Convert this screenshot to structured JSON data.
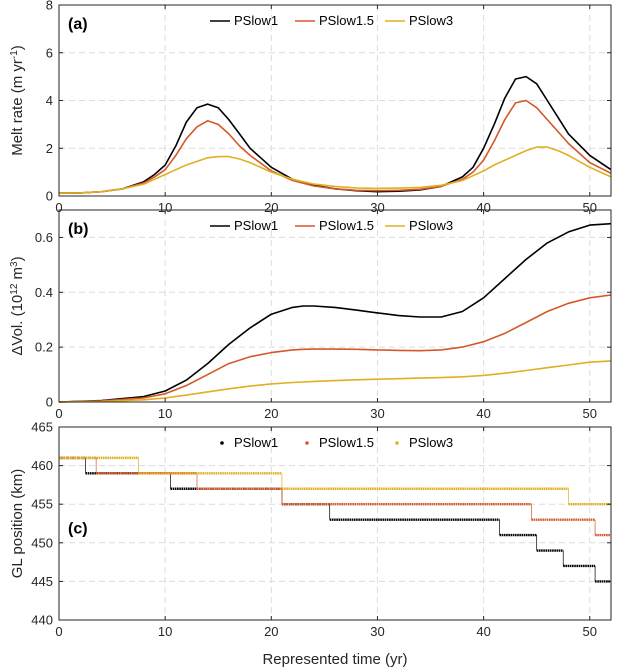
{
  "figure": {
    "xlabel": "Represented time (yr)",
    "xlim": [
      0,
      52
    ],
    "xticks": [
      0,
      10,
      20,
      30,
      40,
      50
    ]
  },
  "series_styles": [
    {
      "name": "PSlow1",
      "color": "#000000"
    },
    {
      "name": "PSlow1.5",
      "color": "#d4592a"
    },
    {
      "name": "PSlow3",
      "color": "#e0b020"
    }
  ],
  "chart_data": [
    {
      "type": "line",
      "panel": "(a)",
      "ylabel": "Melt rate (m yr",
      "ylabel_sup": "-1",
      "ylabel_tail": ")",
      "ylim": [
        0,
        8
      ],
      "yticks": [
        0,
        2,
        4,
        6,
        8
      ],
      "grid": true,
      "legend": "top",
      "x": [
        0,
        2,
        4,
        6,
        8,
        9,
        10,
        11,
        12,
        13,
        14,
        15,
        16,
        17,
        18,
        20,
        22,
        24,
        26,
        28,
        30,
        32,
        34,
        36,
        38,
        39,
        40,
        41,
        42,
        43,
        44,
        45,
        46,
        47,
        48,
        50,
        52
      ],
      "series": [
        {
          "name": "PSlow1",
          "values": [
            0.12,
            0.13,
            0.18,
            0.3,
            0.6,
            0.9,
            1.3,
            2.1,
            3.1,
            3.7,
            3.85,
            3.7,
            3.2,
            2.6,
            2.0,
            1.2,
            0.7,
            0.45,
            0.3,
            0.22,
            0.18,
            0.2,
            0.25,
            0.4,
            0.8,
            1.2,
            2.0,
            3.0,
            4.1,
            4.9,
            5.0,
            4.7,
            4.0,
            3.3,
            2.6,
            1.7,
            1.1
          ]
        },
        {
          "name": "PSlow1.5",
          "values": [
            0.12,
            0.13,
            0.18,
            0.3,
            0.55,
            0.8,
            1.1,
            1.7,
            2.4,
            2.9,
            3.15,
            3.0,
            2.6,
            2.1,
            1.7,
            1.05,
            0.65,
            0.42,
            0.3,
            0.24,
            0.22,
            0.24,
            0.28,
            0.4,
            0.7,
            1.0,
            1.5,
            2.3,
            3.2,
            3.9,
            4.0,
            3.7,
            3.2,
            2.7,
            2.2,
            1.4,
            0.95
          ]
        },
        {
          "name": "PSlow3",
          "values": [
            0.12,
            0.13,
            0.18,
            0.3,
            0.5,
            0.7,
            0.9,
            1.1,
            1.3,
            1.45,
            1.6,
            1.65,
            1.65,
            1.55,
            1.4,
            1.0,
            0.7,
            0.5,
            0.4,
            0.34,
            0.32,
            0.33,
            0.36,
            0.45,
            0.65,
            0.85,
            1.05,
            1.3,
            1.5,
            1.7,
            1.9,
            2.05,
            2.05,
            1.9,
            1.7,
            1.2,
            0.8
          ]
        }
      ]
    },
    {
      "type": "line",
      "panel": "(b)",
      "ylabel": "ΔVol. (10",
      "ylabel_sup": "12",
      "ylabel_tail": " m",
      "ylabel_sup2": "3",
      "ylabel_end": ")",
      "ylim": [
        0,
        0.7
      ],
      "yticks": [
        0,
        0.2,
        0.4,
        0.6
      ],
      "grid": true,
      "legend": "top",
      "x": [
        0,
        4,
        8,
        10,
        12,
        14,
        16,
        18,
        20,
        22,
        23,
        24,
        26,
        28,
        30,
        32,
        34,
        36,
        38,
        40,
        42,
        44,
        46,
        48,
        50,
        52
      ],
      "series": [
        {
          "name": "PSlow1",
          "values": [
            0.0,
            0.005,
            0.02,
            0.04,
            0.08,
            0.14,
            0.21,
            0.27,
            0.32,
            0.345,
            0.35,
            0.35,
            0.345,
            0.335,
            0.325,
            0.315,
            0.31,
            0.31,
            0.33,
            0.38,
            0.45,
            0.52,
            0.58,
            0.62,
            0.645,
            0.65
          ]
        },
        {
          "name": "PSlow1.5",
          "values": [
            0.0,
            0.004,
            0.015,
            0.03,
            0.06,
            0.1,
            0.14,
            0.165,
            0.18,
            0.19,
            0.192,
            0.193,
            0.193,
            0.192,
            0.19,
            0.188,
            0.187,
            0.19,
            0.2,
            0.22,
            0.25,
            0.29,
            0.33,
            0.36,
            0.38,
            0.39
          ]
        },
        {
          "name": "PSlow3",
          "values": [
            0.0,
            0.002,
            0.008,
            0.015,
            0.025,
            0.037,
            0.048,
            0.058,
            0.066,
            0.071,
            0.073,
            0.075,
            0.078,
            0.081,
            0.083,
            0.085,
            0.087,
            0.089,
            0.092,
            0.097,
            0.105,
            0.115,
            0.125,
            0.135,
            0.145,
            0.15
          ]
        }
      ]
    },
    {
      "type": "scatter",
      "panel": "(c)",
      "ylabel": "GL position (km)",
      "ylim": [
        440,
        465
      ],
      "yticks": [
        440,
        445,
        450,
        455,
        460,
        465
      ],
      "grid": true,
      "legend": "top",
      "series": [
        {
          "name": "PSlow1",
          "steps": [
            [
              0,
              2.5,
              461
            ],
            [
              2.5,
              10.5,
              459
            ],
            [
              10.5,
              21,
              457
            ],
            [
              21,
              25.5,
              455
            ],
            [
              25.5,
              41.5,
              453
            ],
            [
              41.5,
              45,
              451
            ],
            [
              45,
              47.5,
              449
            ],
            [
              47.5,
              50.5,
              447
            ],
            [
              50.5,
              52,
              445
            ]
          ]
        },
        {
          "name": "PSlow1.5",
          "steps": [
            [
              0,
              3.5,
              461
            ],
            [
              3.5,
              13,
              459
            ],
            [
              13,
              21,
              457
            ],
            [
              21,
              44.5,
              455
            ],
            [
              44.5,
              50.5,
              453
            ],
            [
              50.5,
              52,
              451
            ]
          ]
        },
        {
          "name": "PSlow3",
          "steps": [
            [
              0,
              7.5,
              461
            ],
            [
              7.5,
              21,
              459
            ],
            [
              21,
              48,
              457
            ],
            [
              48,
              52,
              455
            ]
          ]
        }
      ]
    }
  ]
}
